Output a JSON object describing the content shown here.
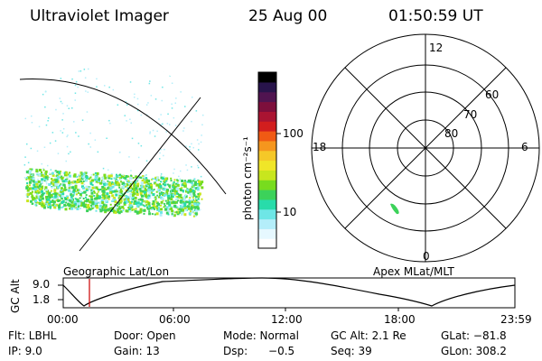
{
  "header": {
    "instrument": "Ultraviolet Imager",
    "date": "25 Aug 00",
    "time": "01:50:59  UT"
  },
  "colorbar": {
    "unit_label": "photon cm⁻²s⁻¹",
    "ticks": [
      "100",
      "10"
    ],
    "scale": "log",
    "colors": [
      "#ffffff",
      "#e6f8ff",
      "#b4eefa",
      "#6ee6e6",
      "#28dcaa",
      "#3cd25a",
      "#78dc1e",
      "#c8e61e",
      "#f0e628",
      "#f5c828",
      "#f5961e",
      "#f05a14",
      "#d21e1e",
      "#aa1432",
      "#7d0f3c",
      "#501450",
      "#28144b",
      "#000000"
    ]
  },
  "left_panel": {
    "label": "Geographic Lat/Lon",
    "emission_color": "#3cd25a"
  },
  "polar_plot": {
    "label": "Apex MLat/MLT",
    "mlt_labels": [
      "12",
      "18",
      "6",
      "0"
    ],
    "mlat_labels": [
      "60",
      "70",
      "80"
    ]
  },
  "altitude_strip": {
    "ylabel": "GC Alt",
    "y_ticks": [
      "9.0",
      "1.8"
    ],
    "x_ticks": [
      "00:00",
      "06:00",
      "12:00",
      "18:00",
      "23:59"
    ],
    "marker_color": "#cc0000"
  },
  "footer": {
    "row1": {
      "flt": "Flt:  LBHL",
      "door": "Door:  Open",
      "mode": "Mode:  Normal",
      "gcalt": "GC Alt:  2.1 Re",
      "glat": "GLat:  −81.8"
    },
    "row2": {
      "ip": "IP:  9.0",
      "gain": "Gain:  13",
      "dsp": "Dsp:      −0.5",
      "seq": "Seq:  39",
      "glon": "GLon:  308.2"
    }
  }
}
